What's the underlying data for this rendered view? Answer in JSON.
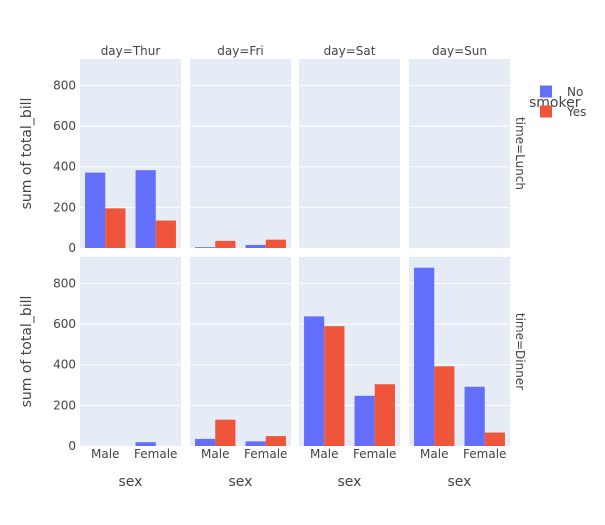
{
  "chart_data": {
    "type": "bar",
    "barmode": "group",
    "facet_cols": {
      "field": "day",
      "labels": [
        "day=Thur",
        "day=Fri",
        "day=Sat",
        "day=Sun"
      ]
    },
    "facet_rows": {
      "field": "time",
      "labels": [
        "time=Lunch",
        "time=Dinner"
      ]
    },
    "categories": [
      "Male",
      "Female"
    ],
    "xlabel": "sex",
    "ylabel": "sum of total_bill",
    "ylim": [
      0,
      930
    ],
    "yticks": [
      0,
      200,
      400,
      600,
      800
    ],
    "legend": {
      "title": "smoker",
      "position": "top-right"
    },
    "series": [
      {
        "name": "No",
        "color": "#636efa"
      },
      {
        "name": "Yes",
        "color": "#ef553b"
      }
    ],
    "panels": [
      {
        "day": "Thur",
        "time": "Lunch",
        "values": {
          "No": [
            371,
            383
          ],
          "Yes": [
            195,
            135
          ]
        }
      },
      {
        "day": "Fri",
        "time": "Lunch",
        "values": {
          "No": [
            4,
            15
          ],
          "Yes": [
            35,
            41
          ]
        }
      },
      {
        "day": "Sat",
        "time": "Lunch",
        "values": {
          "No": [
            null,
            null
          ],
          "Yes": [
            null,
            null
          ]
        }
      },
      {
        "day": "Sun",
        "time": "Lunch",
        "values": {
          "No": [
            null,
            null
          ],
          "Yes": [
            null,
            null
          ]
        }
      },
      {
        "day": "Thur",
        "time": "Dinner",
        "values": {
          "No": [
            null,
            18.78
          ],
          "Yes": [
            null,
            null
          ]
        }
      },
      {
        "day": "Fri",
        "time": "Dinner",
        "values": {
          "No": [
            34.95,
            22.75
          ],
          "Yes": [
            129.46,
            48.8
          ]
        }
      },
      {
        "day": "Sat",
        "time": "Dinner",
        "values": {
          "No": [
            637.73,
            247.05
          ],
          "Yes": [
            589.62,
            304
          ]
        }
      },
      {
        "day": "Sun",
        "time": "Dinner",
        "values": {
          "No": [
            877.34,
            291.54
          ],
          "Yes": [
            392.12,
            66.16
          ]
        }
      }
    ]
  }
}
